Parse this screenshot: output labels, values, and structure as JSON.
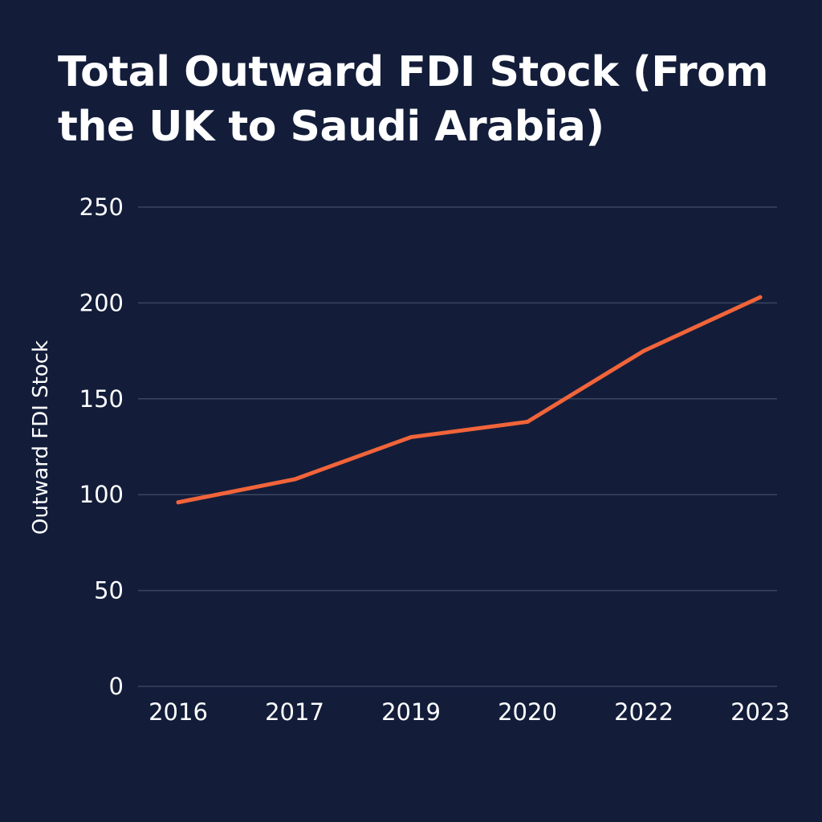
{
  "chart": {
    "title_line1": "Total Outward FDI Stock (From",
    "title_line2": "the UK to Saudi Arabia)"
  },
  "colors": {
    "background": "#131d3a",
    "grid": "#3a4560",
    "line": "#f2643a",
    "text": "#ffffff"
  },
  "chart_data": {
    "type": "line",
    "title": "Total Outward FDI Stock (From the UK to Saudi Arabia)",
    "xlabel": "",
    "ylabel": "Outward FDI Stock",
    "categories": [
      "2016",
      "2017",
      "2019",
      "2020",
      "2022",
      "2023"
    ],
    "series": [
      {
        "values": [
          96,
          108,
          130,
          138,
          175,
          203
        ]
      }
    ],
    "ylim": [
      0,
      250
    ],
    "yticks": [
      0,
      50,
      100,
      150,
      200,
      250
    ],
    "grid": true,
    "legend": "none"
  }
}
